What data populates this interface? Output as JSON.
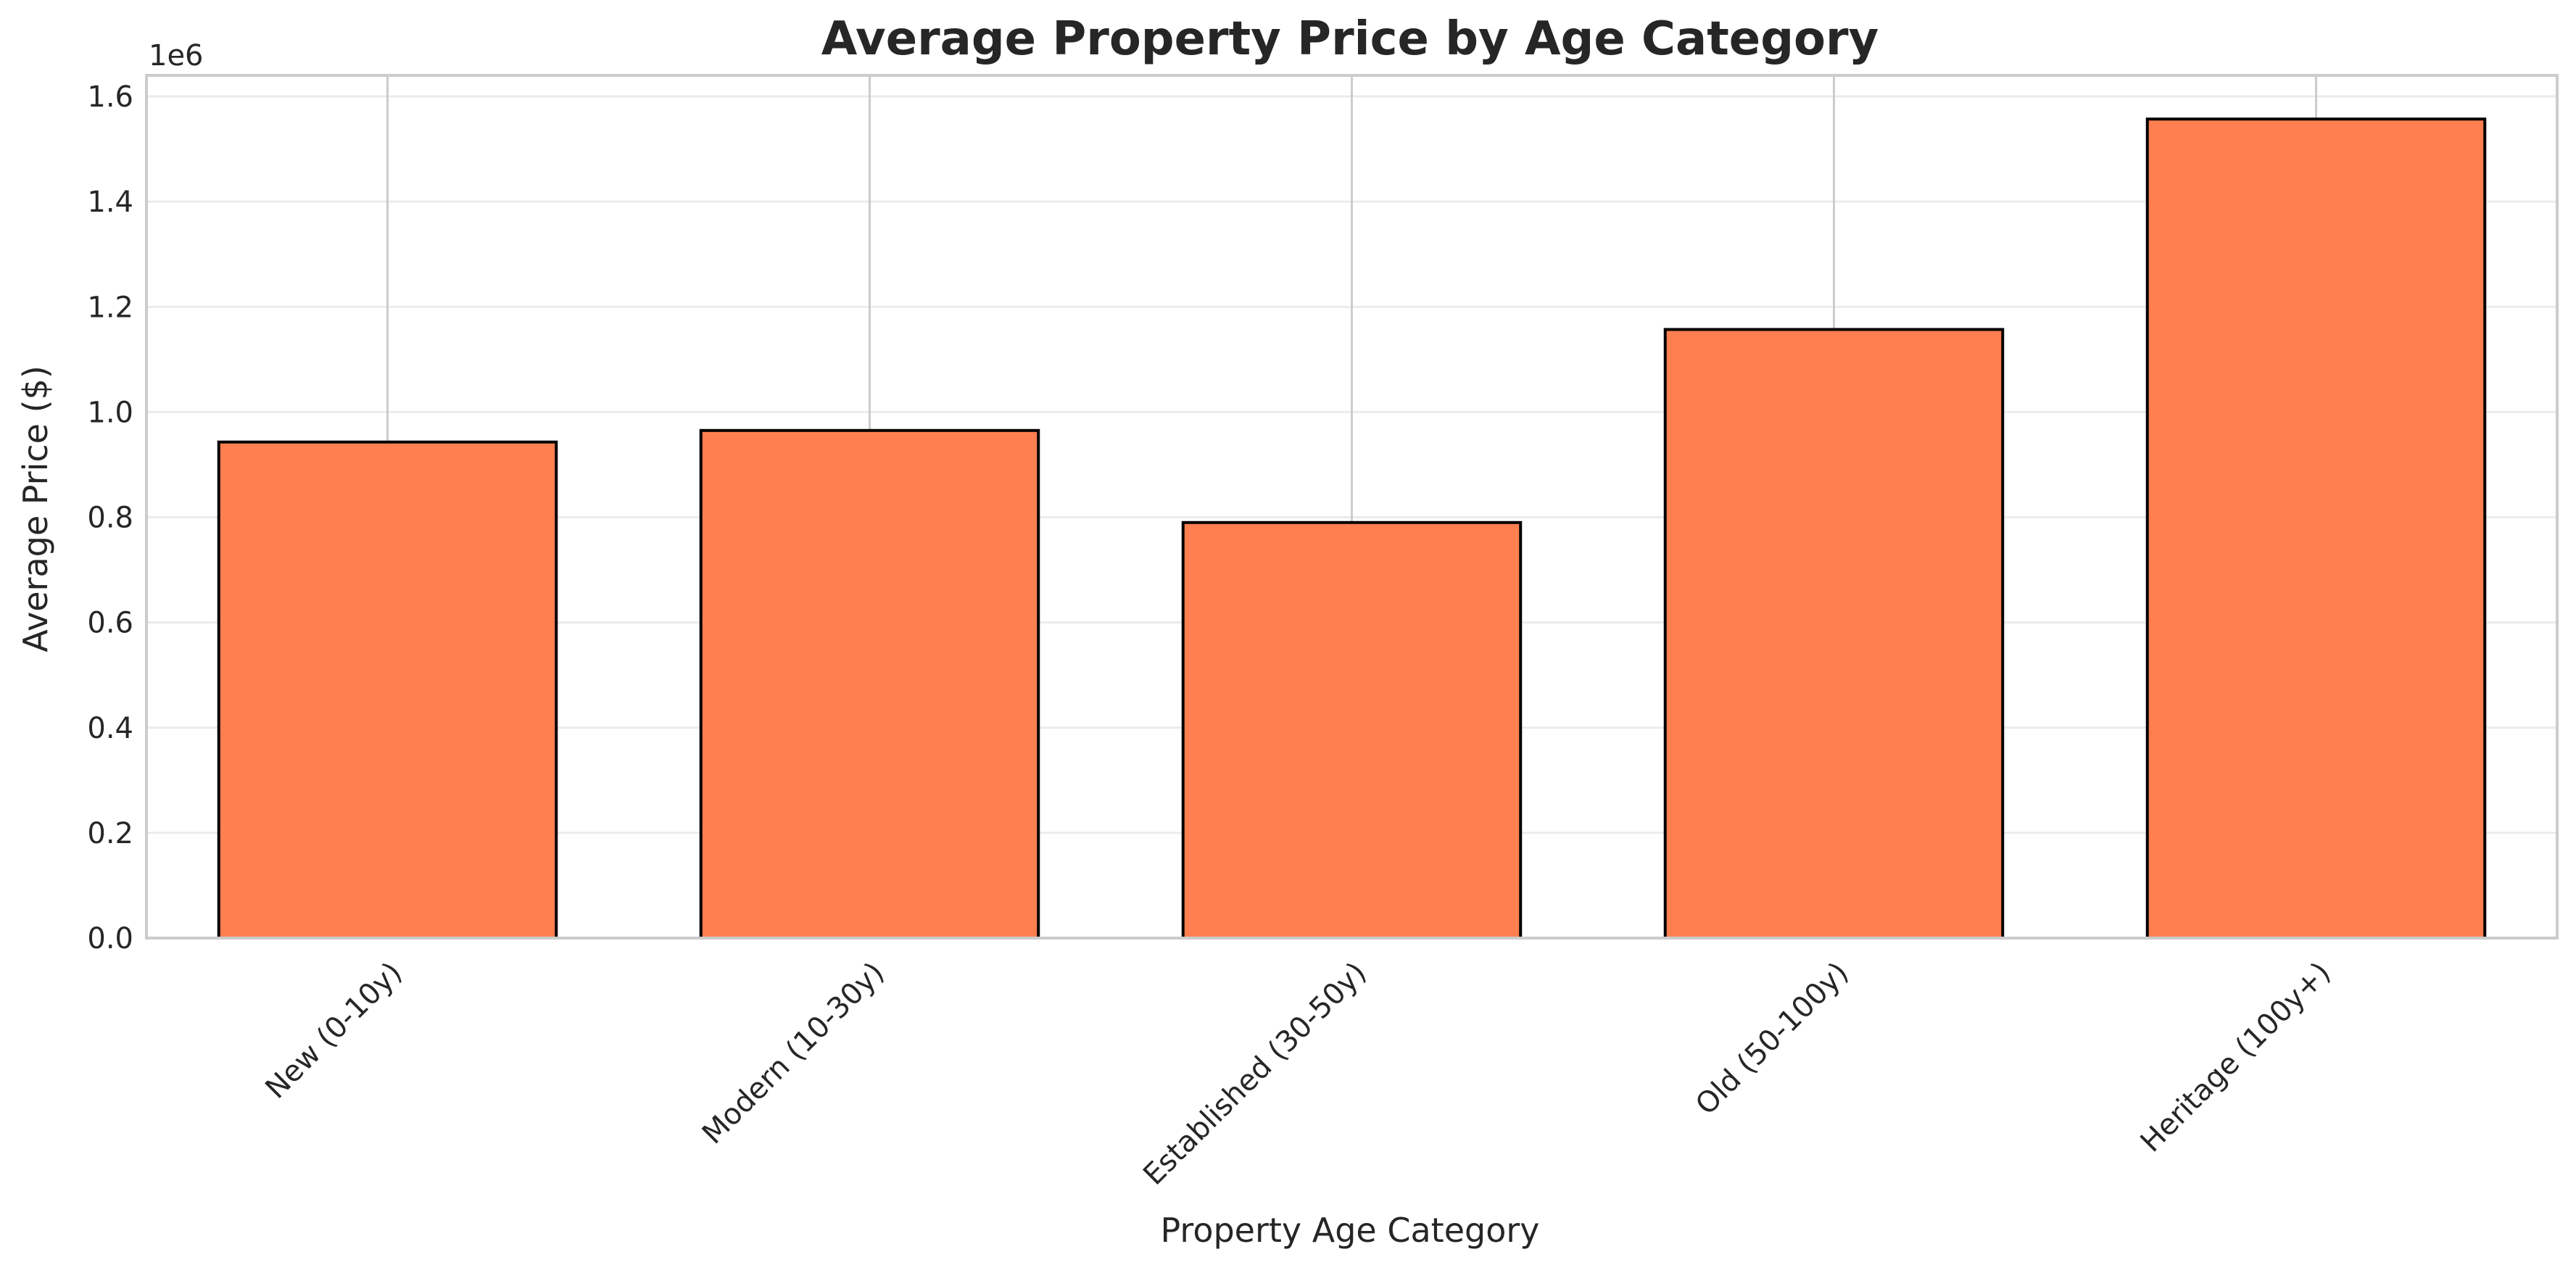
{
  "chart_data": {
    "type": "bar",
    "title": "Average Property Price by Age Category",
    "xlabel": "Property Age Category",
    "ylabel": "Average Price ($)",
    "y_offset_label": "1e6",
    "categories": [
      "New (0-10y)",
      "Modern (10-30y)",
      "Established (30-50y)",
      "Old (50-100y)",
      "Heritage (100y+)"
    ],
    "values": [
      943000,
      965000,
      790000,
      1157000,
      1557000
    ],
    "ylim": [
      0,
      1640000
    ],
    "yticks": [
      0,
      200000,
      400000,
      600000,
      800000,
      1000000,
      1200000,
      1400000,
      1600000
    ],
    "ytick_labels": [
      "0.0",
      "0.2",
      "0.4",
      "0.6",
      "0.8",
      "1.0",
      "1.2",
      "1.4",
      "1.6"
    ],
    "grid": true,
    "legend": "none",
    "colors": {
      "bar_fill": "#ff7f50",
      "bar_edge": "#000000",
      "grid": "#ebebeb",
      "category_grid": "#cccccc",
      "axes_edge": "#cccccc",
      "text": "#262626"
    }
  }
}
